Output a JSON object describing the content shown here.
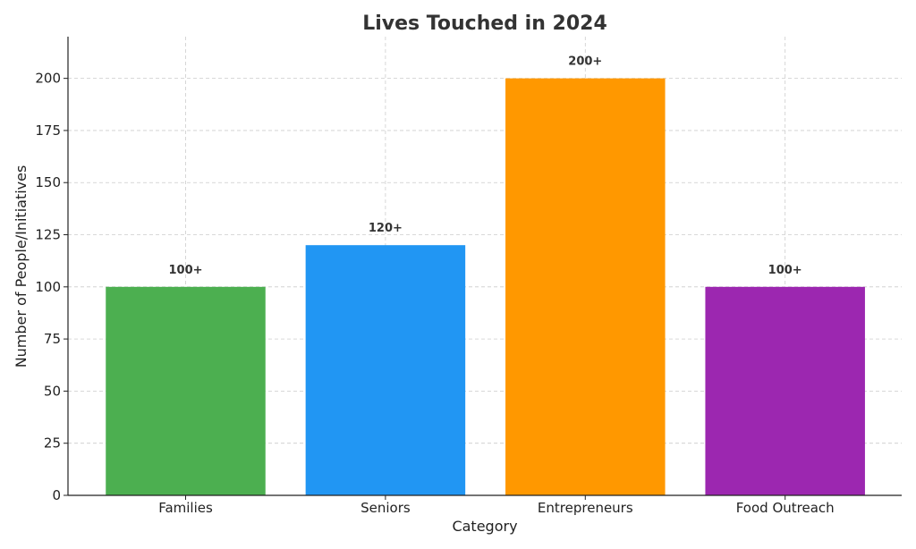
{
  "chart_data": {
    "type": "bar",
    "title": "Lives Touched in 2024",
    "xlabel": "Category",
    "ylabel": "Number of People/Initiatives",
    "categories": [
      "Families",
      "Seniors",
      "Entrepreneurs",
      "Food Outreach"
    ],
    "values": [
      100,
      120,
      200,
      100
    ],
    "data_labels": [
      "100+",
      "120+",
      "200+",
      "100+"
    ],
    "colors": [
      "#4caf50",
      "#2196f3",
      "#ff9800",
      "#9c27b0"
    ],
    "ylim": [
      0,
      220
    ],
    "yticks": [
      0,
      25,
      50,
      75,
      100,
      125,
      150,
      175,
      200
    ],
    "grid": true
  }
}
